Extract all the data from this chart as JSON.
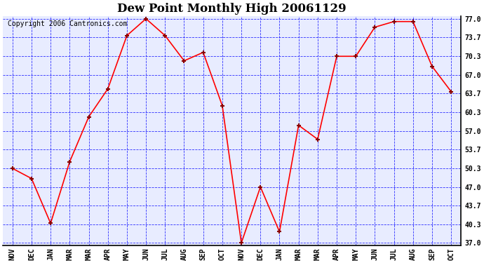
{
  "title": "Dew Point Monthly High 20061129",
  "copyright": "Copyright 2006 Cantronics.com",
  "x_labels": [
    "NOV",
    "DEC",
    "JAN",
    "MAR",
    "MAR",
    "APR",
    "MAY",
    "JUN",
    "JUL",
    "AUG",
    "SEP",
    "OCT",
    "NOV",
    "DEC",
    "JAN",
    "MAR",
    "MAR",
    "APR",
    "MAY",
    "JUN",
    "JUL",
    "AUG",
    "SEP",
    "OCT"
  ],
  "y_values": [
    50.3,
    48.5,
    40.5,
    51.5,
    59.5,
    64.5,
    74.0,
    77.0,
    74.0,
    69.5,
    71.0,
    61.5,
    37.0,
    47.0,
    39.0,
    58.0,
    55.5,
    70.3,
    70.3,
    75.5,
    76.5,
    76.5,
    68.5,
    64.0
  ],
  "y_ticks": [
    37.0,
    40.3,
    43.7,
    47.0,
    50.3,
    53.7,
    57.0,
    60.3,
    63.7,
    67.0,
    70.3,
    73.7,
    77.0
  ],
  "y_min": 37.0,
  "y_max": 77.0,
  "line_color": "red",
  "marker_color": "#880000",
  "plot_bg_color": "#e8ecff",
  "grid_color": "blue",
  "title_fontsize": 12,
  "tick_fontsize": 7,
  "copyright_fontsize": 7
}
